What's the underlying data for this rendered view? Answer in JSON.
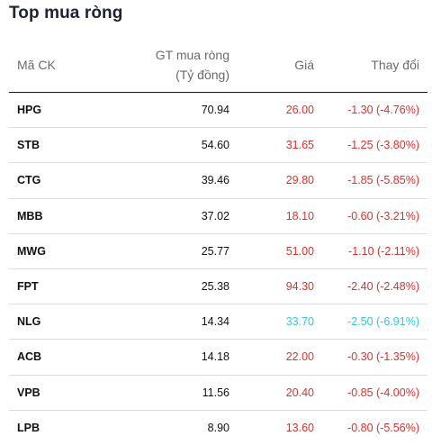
{
  "title": "Top mua ròng",
  "headers": {
    "code": "Mã CK",
    "gt_line1": "GT mua ròng",
    "gt_line2": "(Tỷ đồng)",
    "price": "Giá",
    "change": "Thay đổi"
  },
  "colors": {
    "down": "#e0302c",
    "floor": "#37c6de"
  },
  "rows": [
    {
      "code": "HPG",
      "value": "70.94",
      "price": "26.00",
      "change": "-1.30 (-4.76%)",
      "status": "down"
    },
    {
      "code": "STB",
      "value": "54.60",
      "price": "31.65",
      "change": "-1.25 (-3.80%)",
      "status": "down"
    },
    {
      "code": "CTG",
      "value": "39.46",
      "price": "29.80",
      "change": "-1.85 (-5.85%)",
      "status": "down"
    },
    {
      "code": "MBB",
      "value": "37.02",
      "price": "18.10",
      "change": "-0.60 (-3.21%)",
      "status": "down"
    },
    {
      "code": "MWG",
      "value": "25.77",
      "price": "51.00",
      "change": "-1.10 (-2.11%)",
      "status": "down"
    },
    {
      "code": "FPT",
      "value": "25.38",
      "price": "94.30",
      "change": "-2.40 (-2.48%)",
      "status": "down"
    },
    {
      "code": "NLG",
      "value": "14.34",
      "price": "33.70",
      "change": "-2.50 (-6.91%)",
      "status": "floor"
    },
    {
      "code": "ACB",
      "value": "14.18",
      "price": "22.00",
      "change": "-0.30 (-1.35%)",
      "status": "down"
    },
    {
      "code": "VPB",
      "value": "11.56",
      "price": "20.40",
      "change": "-0.85 (-4.00%)",
      "status": "down"
    },
    {
      "code": "LPB",
      "value": "8.90",
      "price": "13.60",
      "change": "-0.80 (-5.56%)",
      "status": "down"
    }
  ]
}
